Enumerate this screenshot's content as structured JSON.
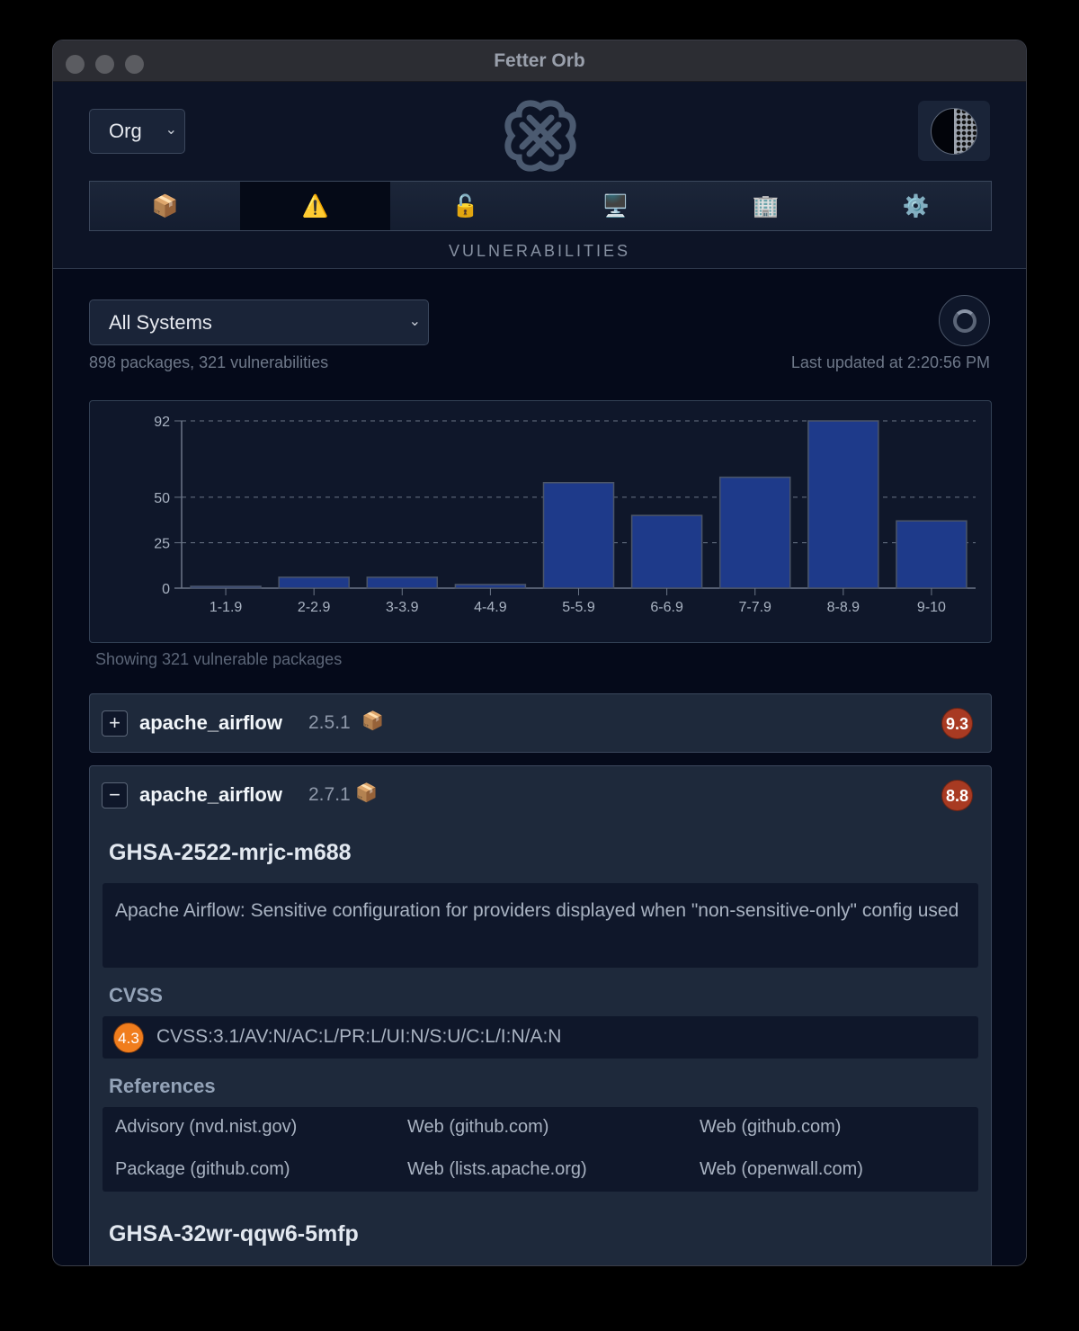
{
  "window": {
    "title": "Fetter Orb"
  },
  "header": {
    "scope_select": {
      "value": "Org"
    },
    "logo": "celtic-knot-logo",
    "tabs": [
      {
        "icon": "📦",
        "name": "packages",
        "active": false
      },
      {
        "icon": "⚠️",
        "name": "vulnerabilities",
        "active": true
      },
      {
        "icon": "🔓",
        "name": "security",
        "active": false
      },
      {
        "icon": "🖥️",
        "name": "systems",
        "active": false
      },
      {
        "icon": "🏢",
        "name": "organization",
        "active": false
      },
      {
        "icon": "⚙️",
        "name": "settings",
        "active": false
      }
    ],
    "section_label": "VULNERABILITIES"
  },
  "filters": {
    "system_select": {
      "value": "All Systems"
    },
    "summary": "898 packages, 321 vulnerabilities",
    "last_updated": "Last updated at 2:20:56 PM"
  },
  "chart_data": {
    "type": "bar",
    "title": "",
    "xlabel": "",
    "ylabel": "",
    "categories": [
      "1-1.9",
      "2-2.9",
      "3-3.9",
      "4-4.9",
      "5-5.9",
      "6-6.9",
      "7-7.9",
      "8-8.9",
      "9-10"
    ],
    "values": [
      1,
      6,
      6,
      2,
      58,
      40,
      61,
      92,
      37
    ],
    "y_ticks": [
      0,
      25,
      50,
      92
    ],
    "ylim": [
      0,
      92
    ],
    "grid": "dashed horizontal",
    "bar_color": "#1e3a8a"
  },
  "chart_caption": "Showing 321 vulnerable packages",
  "packages": [
    {
      "name": "apache_airflow",
      "version": "2.5.1",
      "icon": "📦",
      "severity": "9.3",
      "expanded": false,
      "toggle": "+"
    },
    {
      "name": "apache_airflow",
      "version": "2.7.1",
      "icon": "📦",
      "severity": "8.8",
      "expanded": true,
      "toggle": "−",
      "vulnerabilities": [
        {
          "id": "GHSA-2522-mrjc-m688",
          "description": "Apache Airflow: Sensitive configuration for providers displayed when \"non-sensitive-only\" config used",
          "cvss_label": "CVSS",
          "cvss_score": "4.3",
          "cvss_vector": "CVSS:3.1/AV:N/AC:L/PR:L/UI:N/S:U/C:L/I:N/A:N",
          "references_label": "References",
          "references": [
            "Advisory (nvd.nist.gov)",
            "Web (github.com)",
            "Web (github.com)",
            "Package (github.com)",
            "Web (lists.apache.org)",
            "Web (openwall.com)"
          ]
        },
        {
          "id": "GHSA-32wr-qqw6-5mfp"
        }
      ]
    }
  ],
  "colors": {
    "severity_critical": "#a83a22",
    "cvss_medium": "#f07d1d",
    "bar": "#1e3a8a",
    "background": "#050a1a"
  }
}
